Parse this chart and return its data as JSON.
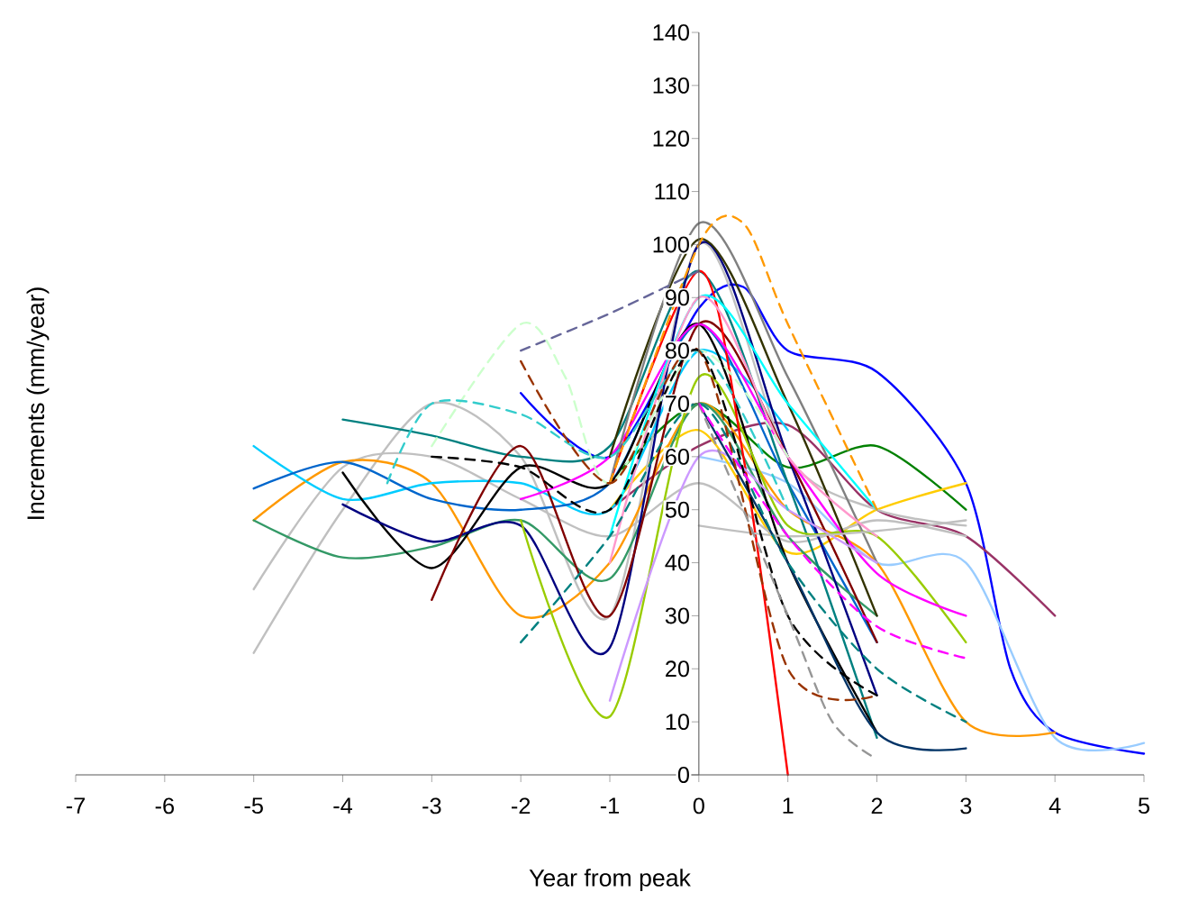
{
  "chart_data": {
    "type": "line",
    "xlabel": "Year from peak",
    "ylabel": "Increments (mm/year)",
    "xlim": [
      -7,
      5
    ],
    "ylim": [
      0,
      140
    ],
    "xticks": [
      -7,
      -6,
      -5,
      -4,
      -3,
      -2,
      -1,
      0,
      1,
      2,
      3,
      4,
      5
    ],
    "yticks": [
      0,
      10,
      20,
      30,
      40,
      50,
      60,
      70,
      80,
      90,
      100,
      110,
      120,
      130,
      140
    ],
    "grid": false,
    "marker": "none",
    "series": [
      {
        "color": "#0000ff",
        "x": [
          -2,
          -1,
          0,
          0.5,
          1,
          2,
          3,
          3.5,
          4,
          5
        ],
        "values": [
          72,
          60,
          88,
          92,
          80,
          76,
          55,
          20,
          8,
          4
        ]
      },
      {
        "color": "#99ccff",
        "x": [
          0,
          1,
          2,
          3,
          4,
          5
        ],
        "values": [
          60,
          55,
          40,
          40,
          7,
          6
        ]
      },
      {
        "color": "#993366",
        "x": [
          -1,
          0,
          1,
          2,
          3,
          4
        ],
        "values": [
          50,
          62,
          66,
          50,
          45,
          30
        ]
      },
      {
        "color": "#008000",
        "x": [
          -1,
          0,
          1,
          2,
          3
        ],
        "values": [
          55,
          70,
          58,
          62,
          50
        ]
      },
      {
        "color": "#ffcc00",
        "x": [
          -1,
          0,
          1,
          2,
          3
        ],
        "values": [
          50,
          65,
          42,
          50,
          55
        ]
      },
      {
        "color": "#c0c0c0",
        "x": [
          -5,
          -4,
          -3,
          -2,
          -1,
          0,
          1,
          2,
          3
        ],
        "values": [
          23,
          50,
          70,
          60,
          30,
          100,
          60,
          50,
          47
        ]
      },
      {
        "color": "#c0c0c0",
        "x": [
          -5,
          -4,
          -3,
          -2,
          -1,
          0,
          1,
          2,
          3
        ],
        "values": [
          35,
          58,
          60,
          52,
          45,
          55,
          44,
          48,
          45
        ]
      },
      {
        "color": "#ff9900",
        "x": [
          -5,
          -4,
          -3,
          -2,
          -1,
          0,
          1,
          2,
          3,
          4
        ],
        "values": [
          48,
          59,
          55,
          30,
          40,
          70,
          50,
          40,
          10,
          8
        ]
      },
      {
        "color": "#00ccff",
        "x": [
          -5,
          -4,
          -3,
          -2,
          -1,
          0,
          1
        ],
        "values": [
          62,
          52,
          55,
          55,
          50,
          80,
          65
        ]
      },
      {
        "color": "#0066cc",
        "x": [
          -5,
          -4,
          -3,
          -2,
          -1,
          0,
          1,
          2
        ],
        "values": [
          54,
          59,
          52,
          50,
          55,
          85,
          55,
          25
        ]
      },
      {
        "color": "#339966",
        "x": [
          -5,
          -4,
          -3,
          -2,
          -1,
          0,
          1,
          2
        ],
        "values": [
          48,
          41,
          43,
          48,
          37,
          70,
          45,
          30
        ]
      },
      {
        "color": "#008080",
        "x": [
          -4,
          -3,
          -2,
          -1,
          0,
          1,
          2
        ],
        "values": [
          67,
          64,
          60,
          62,
          95,
          55,
          7
        ]
      },
      {
        "color": "#000000",
        "x": [
          -4,
          -3,
          -2,
          -1,
          0,
          1,
          2
        ],
        "values": [
          57,
          39,
          58,
          55,
          85,
          40,
          8
        ]
      },
      {
        "color": "#000080",
        "x": [
          -4,
          -3,
          -2,
          -1,
          0,
          1,
          2
        ],
        "values": [
          51,
          44,
          47,
          24,
          100,
          60,
          15
        ]
      },
      {
        "color": "#800000",
        "x": [
          -3,
          -2,
          -1,
          0,
          1,
          2
        ],
        "values": [
          33,
          62,
          30,
          85,
          60,
          25
        ]
      },
      {
        "color": "#99cc00",
        "x": [
          -2,
          -1,
          0,
          1,
          2,
          3
        ],
        "values": [
          48,
          11,
          75,
          47,
          45,
          25
        ]
      },
      {
        "color": "#ff0000",
        "x": [
          -1,
          0,
          0.5,
          1
        ],
        "values": [
          55,
          95,
          60,
          0
        ]
      },
      {
        "color": "#ff00ff",
        "x": [
          -2,
          -1,
          0,
          1,
          2,
          3
        ],
        "values": [
          52,
          60,
          85,
          60,
          38,
          30
        ]
      },
      {
        "color": "#333300",
        "x": [
          -1,
          0,
          1,
          2
        ],
        "values": [
          60,
          101,
          70,
          30
        ]
      },
      {
        "color": "#808080",
        "x": [
          -1,
          0,
          1,
          2
        ],
        "values": [
          55,
          104,
          75,
          40
        ]
      },
      {
        "color": "#00ffff",
        "x": [
          -1,
          0,
          1,
          2
        ],
        "values": [
          45,
          90,
          70,
          50
        ]
      },
      {
        "color": "#cc99ff",
        "x": [
          -1,
          0,
          1,
          2
        ],
        "values": [
          14,
          60,
          50,
          40
        ]
      },
      {
        "color": "#ff99cc",
        "x": [
          -1,
          0,
          1,
          2
        ],
        "values": [
          40,
          90,
          60,
          45
        ]
      },
      {
        "color": "#c0c0c0",
        "x": [
          0,
          1,
          2,
          3
        ],
        "values": [
          47,
          45,
          46,
          48
        ]
      },
      {
        "color": "#003366",
        "x": [
          0,
          1,
          2,
          3
        ],
        "values": [
          70,
          40,
          8,
          5
        ]
      },
      {
        "color": "#ff9900",
        "line_style": "dashed",
        "x": [
          -1,
          0,
          0.5,
          1,
          2
        ],
        "values": [
          55,
          100,
          104,
          85,
          50
        ]
      },
      {
        "color": "#666699",
        "line_style": "dashed",
        "x": [
          -2,
          -1,
          0
        ],
        "values": [
          80,
          87,
          95
        ]
      },
      {
        "color": "#ccffcc",
        "line_style": "dashed",
        "x": [
          -3,
          -2,
          -1.5,
          -1,
          0,
          1
        ],
        "values": [
          62,
          85,
          75,
          55,
          80,
          60
        ]
      },
      {
        "color": "#33cccc",
        "line_style": "dashed",
        "x": [
          -3.5,
          -3,
          -2,
          -1,
          0,
          1
        ],
        "values": [
          55,
          70,
          68,
          60,
          80,
          50
        ]
      },
      {
        "color": "#008080",
        "line_style": "dashed",
        "x": [
          -2,
          -1,
          0,
          1,
          2,
          3
        ],
        "values": [
          25,
          45,
          70,
          40,
          20,
          10
        ]
      },
      {
        "color": "#993300",
        "line_style": "dashed",
        "x": [
          -2,
          -1,
          0,
          1,
          2
        ],
        "values": [
          78,
          55,
          80,
          20,
          15
        ]
      },
      {
        "color": "#000000",
        "line_style": "dashed",
        "x": [
          -3,
          -2,
          -1,
          0,
          1,
          2
        ],
        "values": [
          60,
          58,
          50,
          80,
          30,
          15
        ]
      },
      {
        "color": "#969696",
        "line_style": "dashed",
        "x": [
          0,
          1,
          1.5,
          2
        ],
        "values": [
          70,
          30,
          10,
          3
        ]
      },
      {
        "color": "#ff00ff",
        "line_style": "dashed",
        "x": [
          0,
          1,
          2,
          3
        ],
        "values": [
          70,
          45,
          28,
          22
        ]
      }
    ]
  }
}
